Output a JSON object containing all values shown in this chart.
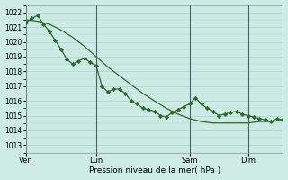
{
  "background_color": "#cdeae5",
  "grid_color": "#aad4cc",
  "line_color": "#2d6a2d",
  "marker_color": "#2d6a2d",
  "xlabel": "Pression niveau de la mer( hPa )",
  "ylim": [
    1012.5,
    1022.5
  ],
  "yticks": [
    1013,
    1014,
    1015,
    1016,
    1017,
    1018,
    1019,
    1020,
    1021,
    1022
  ],
  "day_labels": [
    "Ven",
    "Lun",
    "Sam",
    "Dim"
  ],
  "day_positions": [
    0,
    36,
    84,
    114
  ],
  "series1_x": [
    0,
    3,
    6,
    9,
    12,
    15,
    18,
    21,
    24,
    27,
    30,
    33,
    36,
    39,
    42,
    45,
    48,
    51,
    54,
    57,
    60,
    63,
    66,
    69,
    72,
    75,
    78,
    81,
    84,
    87,
    90,
    93,
    96,
    99,
    102,
    105,
    108,
    111,
    114,
    117,
    120,
    123,
    126,
    129,
    132
  ],
  "series1_y": [
    1021.3,
    1021.6,
    1021.8,
    1021.2,
    1020.7,
    1020.1,
    1019.5,
    1018.8,
    1018.5,
    1018.7,
    1018.9,
    1018.6,
    1018.4,
    1017.0,
    1016.6,
    1016.8,
    1016.8,
    1016.5,
    1016.0,
    1015.8,
    1015.5,
    1015.4,
    1015.3,
    1015.0,
    1014.9,
    1015.2,
    1015.4,
    1015.6,
    1015.8,
    1016.2,
    1015.8,
    1015.5,
    1015.3,
    1015.0,
    1015.1,
    1015.2,
    1015.3,
    1015.1,
    1015.0,
    1014.9,
    1014.8,
    1014.7,
    1014.6,
    1014.8,
    1014.7
  ],
  "series2_x": [
    0,
    6,
    12,
    18,
    24,
    30,
    36,
    42,
    48,
    54,
    60,
    66,
    72,
    78,
    84,
    90,
    96,
    102,
    108,
    114,
    120,
    126,
    132
  ],
  "series2_y": [
    1021.5,
    1021.4,
    1021.2,
    1020.8,
    1020.3,
    1019.7,
    1019.0,
    1018.3,
    1017.7,
    1017.1,
    1016.5,
    1016.0,
    1015.5,
    1015.1,
    1014.8,
    1014.6,
    1014.5,
    1014.5,
    1014.5,
    1014.5,
    1014.6,
    1014.6,
    1014.7
  ],
  "total_hours": 132
}
